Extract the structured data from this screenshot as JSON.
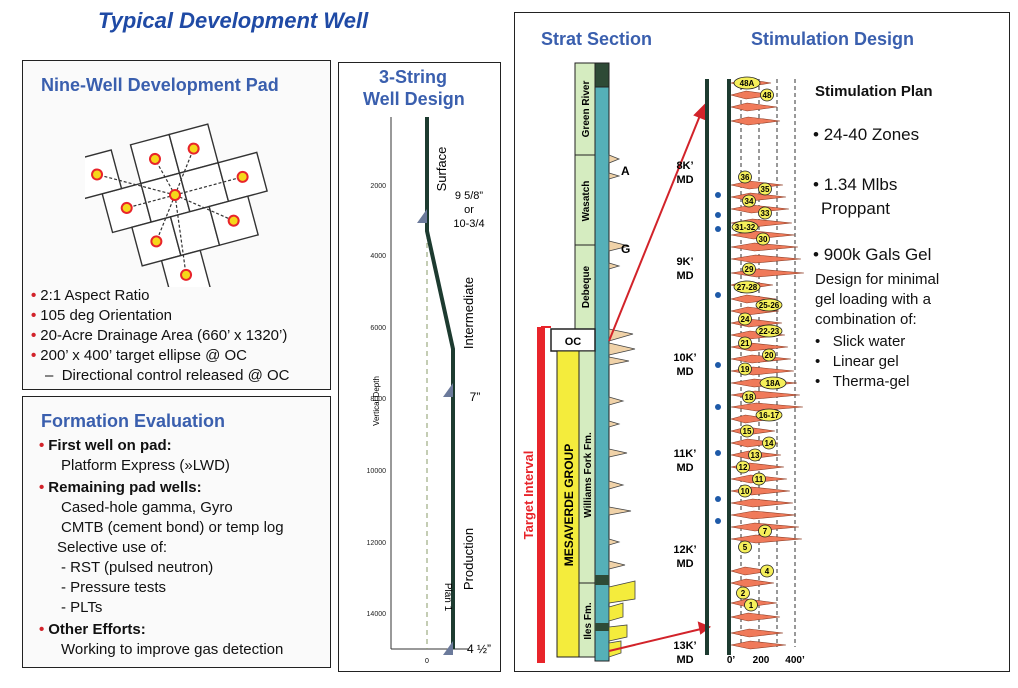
{
  "page_title": "Typical Development Well",
  "pad": {
    "title": "Nine-Well Development Pad",
    "bullets": [
      "2:1 Aspect Ratio",
      "105 deg Orientation",
      "20-Acre Drainage Area (660’ x 1320’)",
      "200’ x 400’ target ellipse @ OC"
    ],
    "sub_bullet": "Directional control released @ OC",
    "colors": {
      "well": "#e8242a",
      "well_fill": "#f5d71a",
      "line": "#333333"
    }
  },
  "formation": {
    "title": "Formation Evaluation",
    "items": [
      {
        "head": "First well on pad:",
        "lines": [
          "Platform Express (»LWD)"
        ]
      },
      {
        "head": "Remaining pad wells:",
        "lines": [
          "Cased-hole gamma, Gyro",
          "CMTB (cement bond) or temp log",
          "Selective use of:",
          "- RST (pulsed neutron)",
          "- Pressure tests",
          "- PLTs"
        ]
      },
      {
        "head": "Other Efforts:",
        "lines": [
          "Working to improve gas detection"
        ]
      }
    ]
  },
  "well_design": {
    "title_line1": "3-String",
    "title_line2": "Well Design",
    "yaxis_label": "Vertical Depth",
    "yticks": [
      "2000",
      "4000",
      "6000",
      "8000",
      "10000",
      "12000",
      "14000"
    ],
    "xtick": "0",
    "sections": [
      "Surface",
      "Intermediate",
      "Production"
    ],
    "casing": {
      "surface_line1": "9 5/8”",
      "surface_line2": "or",
      "surface_line3": "10-3/4",
      "intermediate": "7”",
      "production": "4 ½”"
    },
    "plan_label": "Plan 1"
  },
  "strat": {
    "title": "Strat Section",
    "formations": [
      "Green River",
      "Wasatch",
      "Debeque",
      "Williams Fork Fm.",
      "Iles Fm."
    ],
    "markers": [
      "A",
      "G"
    ],
    "oc_label": "OC",
    "group_label": "MESAVERDE GROUP",
    "target_label": "Target Interval",
    "colors": {
      "formation": "#d5ecc0",
      "yellow": "#f4ec3c",
      "teal": "#55b0b8",
      "red": "#e8242a",
      "tan": "#f0d2a8"
    }
  },
  "stim": {
    "title": "Stimulation Design",
    "depth_labels": [
      {
        "depth": "8K’",
        "unit": "MD"
      },
      {
        "depth": "9K’",
        "unit": "MD"
      },
      {
        "depth": "10K’",
        "unit": "MD"
      },
      {
        "depth": "11K’",
        "unit": "MD"
      },
      {
        "depth": "12K’",
        "unit": "MD"
      },
      {
        "depth": "13K’",
        "unit": "MD"
      }
    ],
    "x_labels": [
      "0’",
      "200",
      "400’"
    ],
    "zones": [
      "48A",
      "48",
      "36",
      "35",
      "34",
      "33",
      "31-32",
      "30",
      "29",
      "27-28",
      "25-26",
      "24",
      "22-23",
      "21",
      "20",
      "19",
      "18A",
      "18",
      "16-17",
      "15",
      "14",
      "13",
      "12",
      "11",
      "10",
      "7",
      "5",
      "4",
      "2",
      "1"
    ],
    "colors": {
      "frac": "#f07a5a",
      "label": "#f5ef5a"
    }
  },
  "plan": {
    "title": "Stimulation Plan",
    "zones": "24-40 Zones",
    "proppant_line1": "1.34 Mlbs",
    "proppant_line2": "Proppant",
    "gel": "900k Gals Gel",
    "design_lines": [
      "Design for minimal",
      "gel loading with a",
      "combination of:"
    ],
    "fluids": [
      "Slick water",
      "Linear gel",
      "Therma-gel"
    ]
  }
}
